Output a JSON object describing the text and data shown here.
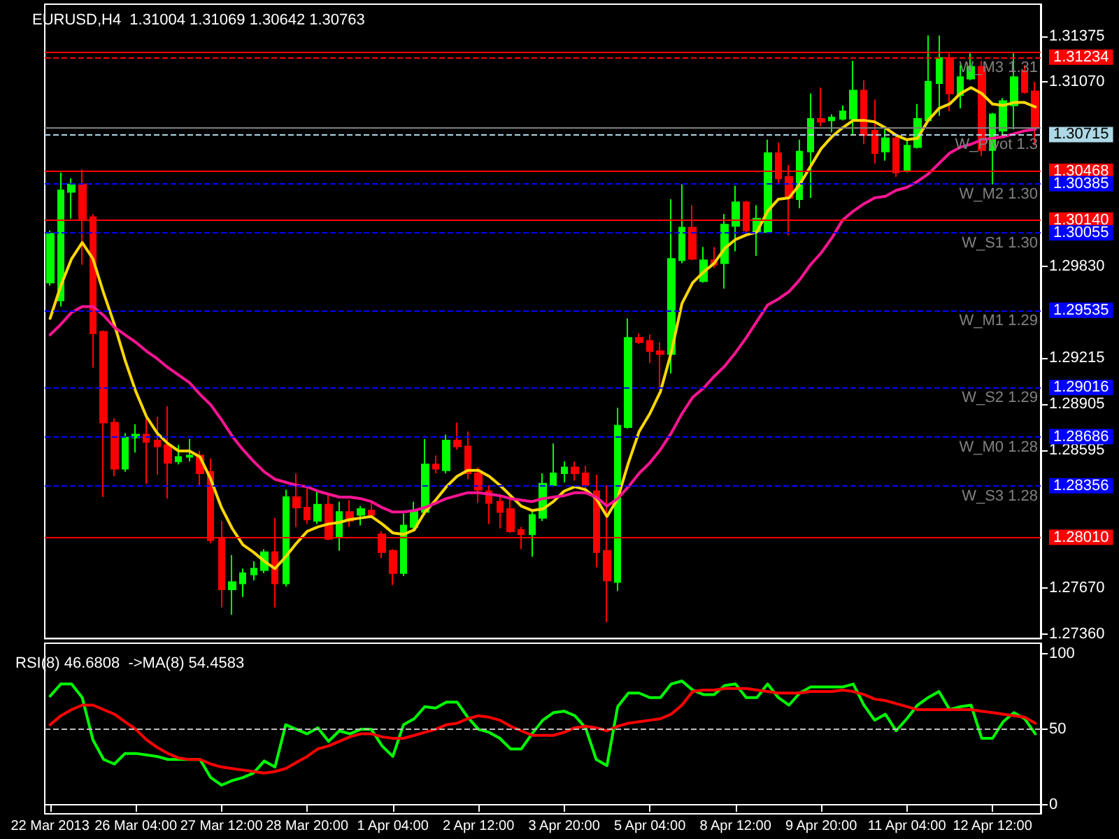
{
  "chart_data": [
    {
      "type": "candlestick",
      "title": "EURUSD,H4  1.31004 1.31069 1.30642 1.30763",
      "categories": [
        null,
        null,
        null,
        null,
        null,
        null,
        null,
        null,
        null,
        null,
        null,
        null,
        null,
        null,
        null,
        null,
        null,
        null,
        null,
        null,
        null,
        null,
        null,
        null,
        null,
        null,
        null,
        null,
        null,
        null,
        null,
        null,
        null,
        null,
        null,
        null,
        null,
        null,
        null,
        null,
        null,
        null,
        null,
        null,
        null,
        null,
        null,
        null,
        null,
        null,
        null,
        null,
        null,
        null,
        null,
        null,
        null,
        null,
        null,
        null,
        null,
        null,
        null,
        null,
        null,
        null,
        null,
        null,
        null,
        null,
        null,
        null,
        null,
        null,
        null,
        null,
        null,
        null,
        null,
        null,
        null,
        null,
        null,
        null,
        null,
        null,
        null,
        null,
        null,
        null,
        null,
        null,
        null
      ],
      "series": [
        {
          "ohlc": [
            [
              1.2972,
              1.3007,
              1.297,
              1.3005
            ],
            [
              1.296,
              1.3046,
              1.2956,
              1.3034
            ],
            [
              1.3033,
              1.3042,
              1.3015,
              1.3038
            ],
            [
              1.3038,
              1.3048,
              1.2984,
              1.3015
            ],
            [
              1.3016,
              1.3018,
              1.2915,
              1.2938
            ],
            [
              1.2939,
              1.294,
              1.2828,
              1.2878
            ],
            [
              1.2878,
              1.2881,
              1.2842,
              1.2847
            ],
            [
              1.2847,
              1.2871,
              1.2845,
              1.2868
            ],
            [
              1.2868,
              1.2877,
              1.2858,
              1.287
            ],
            [
              1.287,
              1.2881,
              1.2837,
              1.2865
            ],
            [
              1.2866,
              1.2882,
              1.2843,
              1.2862
            ],
            [
              1.2863,
              1.2889,
              1.2827,
              1.2851
            ],
            [
              1.2852,
              1.2863,
              1.285,
              1.2855
            ],
            [
              1.2855,
              1.2867,
              1.2852,
              1.2856
            ],
            [
              1.2856,
              1.2859,
              1.2836,
              1.2844
            ],
            [
              1.2845,
              1.2854,
              1.2797,
              1.2799
            ],
            [
              1.28,
              1.2812,
              1.2754,
              1.2766
            ],
            [
              1.2766,
              1.2789,
              1.2749,
              1.2771
            ],
            [
              1.277,
              1.278,
              1.2761,
              1.2777
            ],
            [
              1.2776,
              1.2785,
              1.2772,
              1.278
            ],
            [
              1.2779,
              1.2793,
              1.2777,
              1.2791
            ],
            [
              1.2791,
              1.2814,
              1.2754,
              1.277
            ],
            [
              1.277,
              1.2833,
              1.2768,
              1.2828
            ],
            [
              1.2828,
              1.2844,
              1.2808,
              1.2821
            ],
            [
              1.2821,
              1.2834,
              1.281,
              1.2813
            ],
            [
              1.2812,
              1.2833,
              1.281,
              1.2823
            ],
            [
              1.2823,
              1.283,
              1.2799,
              1.28
            ],
            [
              1.2801,
              1.2825,
              1.2792,
              1.2818
            ],
            [
              1.2818,
              1.2826,
              1.2808,
              1.2812
            ],
            [
              1.2816,
              1.2822,
              1.2809,
              1.282
            ],
            [
              1.2819,
              1.2824,
              1.2815,
              1.2816
            ],
            [
              1.2803,
              1.2805,
              1.2787,
              1.2791
            ],
            [
              1.2792,
              1.2793,
              1.2769,
              1.2777
            ],
            [
              1.2777,
              1.2817,
              1.2775,
              1.2809
            ],
            [
              1.2808,
              1.2825,
              1.2806,
              1.2818
            ],
            [
              1.2818,
              1.2867,
              1.2816,
              1.285
            ],
            [
              1.285,
              1.2856,
              1.2844,
              1.2847
            ],
            [
              1.2846,
              1.287,
              1.2844,
              1.2866
            ],
            [
              1.2866,
              1.2878,
              1.286,
              1.2862
            ],
            [
              1.2862,
              1.2872,
              1.284,
              1.2844
            ],
            [
              1.2844,
              1.2848,
              1.2824,
              1.2833
            ],
            [
              1.2832,
              1.2836,
              1.281,
              1.2824
            ],
            [
              1.2825,
              1.2829,
              1.2807,
              1.2818
            ],
            [
              1.282,
              1.2827,
              1.2804,
              1.2805
            ],
            [
              1.2806,
              1.2808,
              1.2793,
              1.2803
            ],
            [
              1.2803,
              1.2818,
              1.2788,
              1.2816
            ],
            [
              1.2814,
              1.2844,
              1.2812,
              1.2837
            ],
            [
              1.2836,
              1.2864,
              1.2835,
              1.2844
            ],
            [
              1.2844,
              1.2852,
              1.2838,
              1.2848
            ],
            [
              1.2848,
              1.2852,
              1.2839,
              1.2844
            ],
            [
              1.2844,
              1.2849,
              1.2832,
              1.2836
            ],
            [
              1.2832,
              1.2843,
              1.2781,
              1.2791
            ],
            [
              1.2792,
              1.2836,
              1.2744,
              1.2772
            ],
            [
              1.2771,
              1.2888,
              1.2765,
              1.2876
            ],
            [
              1.2875,
              1.2948,
              1.2874,
              1.2935
            ],
            [
              1.2935,
              1.2938,
              1.2931,
              1.2932
            ],
            [
              1.2933,
              1.2937,
              1.2918,
              1.2926
            ],
            [
              1.2926,
              1.2932,
              1.2902,
              1.2924
            ],
            [
              1.2924,
              1.3028,
              1.2911,
              1.2988
            ],
            [
              1.2987,
              1.3038,
              1.2985,
              1.3009
            ],
            [
              1.3009,
              1.3024,
              1.2987,
              1.2988
            ],
            [
              1.2973,
              1.2996,
              1.2972,
              1.2987
            ],
            [
              1.2987,
              1.2996,
              1.2982,
              1.2984
            ],
            [
              1.2985,
              1.3018,
              1.2968,
              1.3011
            ],
            [
              1.301,
              1.3037,
              1.2993,
              1.3026
            ],
            [
              1.3026,
              1.3027,
              1.3006,
              1.3007
            ],
            [
              1.3006,
              1.3024,
              1.299,
              1.3015
            ],
            [
              1.3006,
              1.3068,
              1.3005,
              1.3059
            ],
            [
              1.3059,
              1.3066,
              1.3038,
              1.3042
            ],
            [
              1.3043,
              1.3051,
              1.3004,
              1.3029
            ],
            [
              1.3028,
              1.3068,
              1.3022,
              1.306
            ],
            [
              1.306,
              1.3099,
              1.3029,
              1.3082
            ],
            [
              1.3082,
              1.3103,
              1.3077,
              1.308
            ],
            [
              1.3081,
              1.3085,
              1.3073,
              1.3083
            ],
            [
              1.3082,
              1.3091,
              1.3081,
              1.3087
            ],
            [
              1.3082,
              1.3121,
              1.3071,
              1.3101
            ],
            [
              1.3101,
              1.3108,
              1.3065,
              1.3071
            ],
            [
              1.3074,
              1.3095,
              1.3052,
              1.3059
            ],
            [
              1.306,
              1.3075,
              1.3054,
              1.3069
            ],
            [
              1.3069,
              1.307,
              1.3043,
              1.3046
            ],
            [
              1.3047,
              1.3068,
              1.3046,
              1.3064
            ],
            [
              1.3063,
              1.3092,
              1.3062,
              1.3082
            ],
            [
              1.3081,
              1.3138,
              1.308,
              1.3107
            ],
            [
              1.3106,
              1.3138,
              1.3084,
              1.3123
            ],
            [
              1.3123,
              1.3126,
              1.3087,
              1.3099
            ],
            [
              1.3098,
              1.3118,
              1.3089,
              1.311
            ],
            [
              1.3109,
              1.3126,
              1.3108,
              1.3117
            ],
            [
              1.3117,
              1.3121,
              1.3057,
              1.3061
            ],
            [
              1.3061,
              1.3086,
              1.3038,
              1.3085
            ],
            [
              1.3074,
              1.3096,
              1.3071,
              1.3094
            ],
            [
              1.3091,
              1.3126,
              1.3075,
              1.311
            ],
            [
              1.3114,
              1.3118,
              1.3099,
              1.31
            ],
            [
              1.31004,
              1.31069,
              1.30642,
              1.30763
            ]
          ],
          "colors": [
            "#00ff00",
            "#00ff00",
            "#00ff00",
            "#ff0000",
            "#ff0000",
            "#ff0000",
            "#ff0000",
            "#00ff00",
            "#00ff00",
            "#ff0000",
            "#ff0000",
            "#ff0000",
            "#00ff00",
            "#00ff00",
            "#ff0000",
            "#ff0000",
            "#ff0000",
            "#00ff00",
            "#00ff00",
            "#00ff00",
            "#00ff00",
            "#ff0000",
            "#00ff00",
            "#ff0000",
            "#ff0000",
            "#00ff00",
            "#ff0000",
            "#00ff00",
            "#ff0000",
            "#00ff00",
            "#ff0000",
            "#ff0000",
            "#ff0000",
            "#00ff00",
            "#00ff00",
            "#00ff00",
            "#ff0000",
            "#00ff00",
            "#ff0000",
            "#ff0000",
            "#ff0000",
            "#ff0000",
            "#ff0000",
            "#ff0000",
            "#ff0000",
            "#00ff00",
            "#00ff00",
            "#00ff00",
            "#00ff00",
            "#ff0000",
            "#ff0000",
            "#ff0000",
            "#ff0000",
            "#00ff00",
            "#00ff00",
            "#ff0000",
            "#ff0000",
            "#ff0000",
            "#00ff00",
            "#00ff00",
            "#ff0000",
            "#00ff00",
            "#ff0000",
            "#00ff00",
            "#00ff00",
            "#ff0000",
            "#00ff00",
            "#00ff00",
            "#ff0000",
            "#ff0000",
            "#00ff00",
            "#00ff00",
            "#ff0000",
            "#00ff00",
            "#00ff00",
            "#00ff00",
            "#ff0000",
            "#ff0000",
            "#00ff00",
            "#ff0000",
            "#00ff00",
            "#00ff00",
            "#00ff00",
            "#00ff00",
            "#ff0000",
            "#00ff00",
            "#00ff00",
            "#ff0000",
            "#00ff00",
            "#00ff00",
            "#00ff00",
            "#ff0000",
            "#ff0000"
          ]
        },
        {
          "type": "line",
          "color": "#ffd700",
          "values": [
            1.2948,
            1.297,
            1.2988,
            1.2999,
            1.2988,
            1.2965,
            1.2944,
            1.292,
            1.2899,
            1.2882,
            1.2871,
            1.2864,
            1.2859,
            1.2859,
            1.2855,
            1.284,
            1.2821,
            1.2807,
            1.2796,
            1.2791,
            1.2785,
            1.278,
            1.2788,
            1.2797,
            1.2805,
            1.2808,
            1.281,
            1.2811,
            1.2813,
            1.2814,
            1.2815,
            1.281,
            1.2804,
            1.2803,
            1.2806,
            1.2818,
            1.2826,
            1.2835,
            1.2842,
            1.2846,
            1.2846,
            1.2842,
            1.2836,
            1.2829,
            1.2822,
            1.2819,
            1.282,
            1.2825,
            1.2832,
            1.2835,
            1.2833,
            1.2827,
            1.2815,
            1.2827,
            1.2851,
            1.2872,
            1.2884,
            1.2899,
            1.2925,
            1.2958,
            1.2972,
            1.2979,
            1.2985,
            1.2995,
            1.3001,
            1.3004,
            1.3006,
            1.302,
            1.3028,
            1.3029,
            1.3038,
            1.305,
            1.3062,
            1.307,
            1.3076,
            1.3081,
            1.3081,
            1.308,
            1.3076,
            1.3071,
            1.3068,
            1.3069,
            1.3081,
            1.3089,
            1.3092,
            1.3099,
            1.3103,
            1.3099,
            1.3092,
            1.3091,
            1.3093,
            1.3093,
            1.309
          ]
        },
        {
          "type": "line",
          "color": "#ff1493",
          "values": [
            1.2937,
            1.2944,
            1.2952,
            1.2956,
            1.2956,
            1.295,
            1.2942,
            1.2937,
            1.2932,
            1.2926,
            1.2921,
            1.2915,
            1.291,
            1.2905,
            1.2897,
            1.289,
            1.288,
            1.2869,
            1.286,
            1.2852,
            1.2845,
            1.284,
            1.2838,
            1.2836,
            1.2835,
            1.2832,
            1.283,
            1.2828,
            1.2828,
            1.2827,
            1.2825,
            1.2821,
            1.2818,
            1.2818,
            1.2819,
            1.2821,
            1.2824,
            1.2827,
            1.2829,
            1.2831,
            1.2831,
            1.283,
            1.2829,
            1.2827,
            1.2826,
            1.2825,
            1.2827,
            1.2828,
            1.2829,
            1.2831,
            1.2831,
            1.2828,
            1.2822,
            1.2827,
            1.2835,
            1.2844,
            1.2851,
            1.286,
            1.2871,
            1.2884,
            1.2895,
            1.2901,
            1.2909,
            1.2916,
            1.2925,
            1.2935,
            1.2946,
            1.2957,
            1.2961,
            1.2966,
            1.2974,
            1.2984,
            1.2992,
            1.3002,
            1.3014,
            1.302,
            1.3025,
            1.3029,
            1.303,
            1.3034,
            1.3036,
            1.304,
            1.3045,
            1.3052,
            1.3059,
            1.3063,
            1.3065,
            1.3068,
            1.3069,
            1.307,
            1.3072,
            1.3074,
            1.3075
          ]
        }
      ],
      "ylim": [
        1.2733,
        1.3159
      ],
      "yticks": [
        1.31375,
        {
          "value": 1.3107,
          "label": "1.31070"
        },
        {
          "value": 1.2983,
          "label": "1.29830"
        },
        1.29215,
        1.28905,
        1.28595,
        {
          "value": 1.2767,
          "label": "1.27670"
        },
        {
          "value": 1.2736,
          "label": "1.27360"
        }
      ],
      "tick_labels": "y",
      "grid": false,
      "marker": "none",
      "line_style": "solid",
      "ref_lines": [
        {
          "axis": "y",
          "value": 1.31267,
          "label": null,
          "color": "#ff0000",
          "line_style": "solid"
        },
        {
          "axis": "y",
          "value": 1.31234,
          "label": "1.31234",
          "color": "#ff0000",
          "line_style": "dashed"
        },
        {
          "axis": "y",
          "value": 1.30763,
          "label": null,
          "color": "#808080",
          "line_style": "solid"
        },
        {
          "axis": "y",
          "value": 1.30715,
          "label": "1.30715",
          "color": "#add8e6",
          "line_style": "dashed"
        },
        {
          "axis": "y",
          "value": 1.30468,
          "label": "1.30468",
          "color": "#ff0000",
          "line_style": "solid"
        },
        {
          "axis": "y",
          "value": 1.30385,
          "label": "1.30385",
          "color": "#0000ff",
          "line_style": "dashed"
        },
        {
          "axis": "y",
          "value": 1.3014,
          "label": "1.30140",
          "color": "#ff0000",
          "line_style": "solid"
        },
        {
          "axis": "y",
          "value": 1.30055,
          "label": "1.30055",
          "color": "#0000ff",
          "line_style": "dashed"
        },
        {
          "axis": "y",
          "value": 1.29535,
          "label": "1.29535",
          "color": "#0000ff",
          "line_style": "dashed"
        },
        {
          "axis": "y",
          "value": 1.29016,
          "label": "1.29016",
          "color": "#0000ff",
          "line_style": "dashed"
        },
        {
          "axis": "y",
          "value": 1.28686,
          "label": "1.28686",
          "color": "#0000ff",
          "line_style": "dashed"
        },
        {
          "axis": "y",
          "value": 1.28356,
          "label": "1.28356",
          "color": "#0000ff",
          "line_style": "dashed"
        },
        {
          "axis": "y",
          "value": 1.2801,
          "label": "1.28010",
          "color": "#ff0000",
          "line_style": "solid"
        }
      ],
      "annotations": [
        {
          "text": "W_M3 1.31",
          "y": 1.31234
        },
        {
          "text": "W_Pivot 1.3",
          "y": 1.30715
        },
        {
          "text": "W_M2 1.30",
          "y": 1.30385
        },
        {
          "text": "W_S1 1.30",
          "y": 1.30055
        },
        {
          "text": "W_M1 1.29",
          "y": 1.29535
        },
        {
          "text": "W_S2 1.29",
          "y": 1.29016
        },
        {
          "text": "W_M0 1.28",
          "y": 1.28686
        },
        {
          "text": "W_S3 1.28",
          "y": 1.28356
        }
      ]
    },
    {
      "type": "line",
      "title": "RSI(8) 46.6808  ->MA(8) 54.4583",
      "categories": [
        "22 Mar 2013",
        null,
        null,
        null,
        null,
        null,
        null,
        null,
        "26 Mar 04:00",
        null,
        null,
        null,
        null,
        null,
        null,
        null,
        "27 Mar 12:00",
        null,
        null,
        null,
        null,
        null,
        null,
        null,
        "28 Mar 20:00",
        null,
        null,
        null,
        null,
        null,
        null,
        null,
        "1 Apr 04:00",
        null,
        null,
        null,
        null,
        null,
        null,
        null,
        "2 Apr 12:00",
        null,
        null,
        null,
        null,
        null,
        null,
        null,
        "3 Apr 20:00",
        null,
        null,
        null,
        null,
        null,
        null,
        null,
        "5 Apr 04:00",
        null,
        null,
        null,
        null,
        null,
        null,
        null,
        "8 Apr 12:00",
        null,
        null,
        null,
        null,
        null,
        null,
        null,
        "9 Apr 20:00",
        null,
        null,
        null,
        null,
        null,
        null,
        null,
        "11 Apr 04:00",
        null,
        null,
        null,
        null,
        null,
        null,
        null,
        "12 Apr 12:00",
        null,
        null,
        null,
        null
      ],
      "series": [
        {
          "color": "#00ff00",
          "values": [
            72,
            80,
            80,
            71,
            43,
            30,
            27,
            34,
            34,
            33,
            32,
            30,
            30,
            30,
            30,
            18,
            13,
            16,
            18,
            21,
            29,
            25,
            53,
            50,
            47,
            51,
            42,
            49,
            47,
            50,
            50,
            39,
            32,
            53,
            57,
            65,
            64,
            68,
            68,
            58,
            50,
            48,
            44,
            37,
            37,
            47,
            56,
            61,
            62,
            59,
            51,
            30,
            26,
            65,
            74,
            74,
            71,
            71,
            80,
            82,
            76,
            73,
            73,
            79,
            80,
            71,
            71,
            80,
            71,
            66,
            74,
            78,
            78,
            78,
            78,
            80,
            66,
            56,
            60,
            49,
            57,
            66,
            71,
            75,
            63,
            65,
            66,
            44,
            44,
            55,
            61,
            57,
            47
          ]
        },
        {
          "color": "#ff0000",
          "values": [
            53,
            59,
            63,
            66,
            66,
            63,
            60,
            55,
            50,
            43,
            38,
            34,
            31,
            30,
            30,
            27,
            25,
            24,
            23,
            22,
            21,
            22,
            24,
            28,
            32,
            37,
            39,
            42,
            45,
            47,
            47,
            45,
            44,
            44,
            46,
            48,
            50,
            53,
            54,
            57,
            59,
            58,
            56,
            52,
            49,
            46,
            46,
            46,
            48,
            51,
            52,
            51,
            49,
            52,
            54,
            55,
            56,
            57,
            60,
            66,
            75,
            76,
            76,
            77,
            77,
            77,
            76,
            75,
            74,
            74,
            74,
            75,
            75,
            75,
            76,
            75,
            73,
            70,
            69,
            67,
            65,
            63,
            63,
            63,
            63,
            63,
            63,
            62,
            61,
            60,
            59,
            58,
            54
          ]
        }
      ],
      "ylim": [
        -6,
        107
      ],
      "yticks": [
        0,
        50,
        100
      ],
      "grid": false,
      "marker": "none",
      "line_style": "solid",
      "ref_lines": [
        {
          "axis": "y",
          "value": 50,
          "label": null,
          "color": "#c0c0c0",
          "line_style": "dashed"
        }
      ]
    }
  ]
}
